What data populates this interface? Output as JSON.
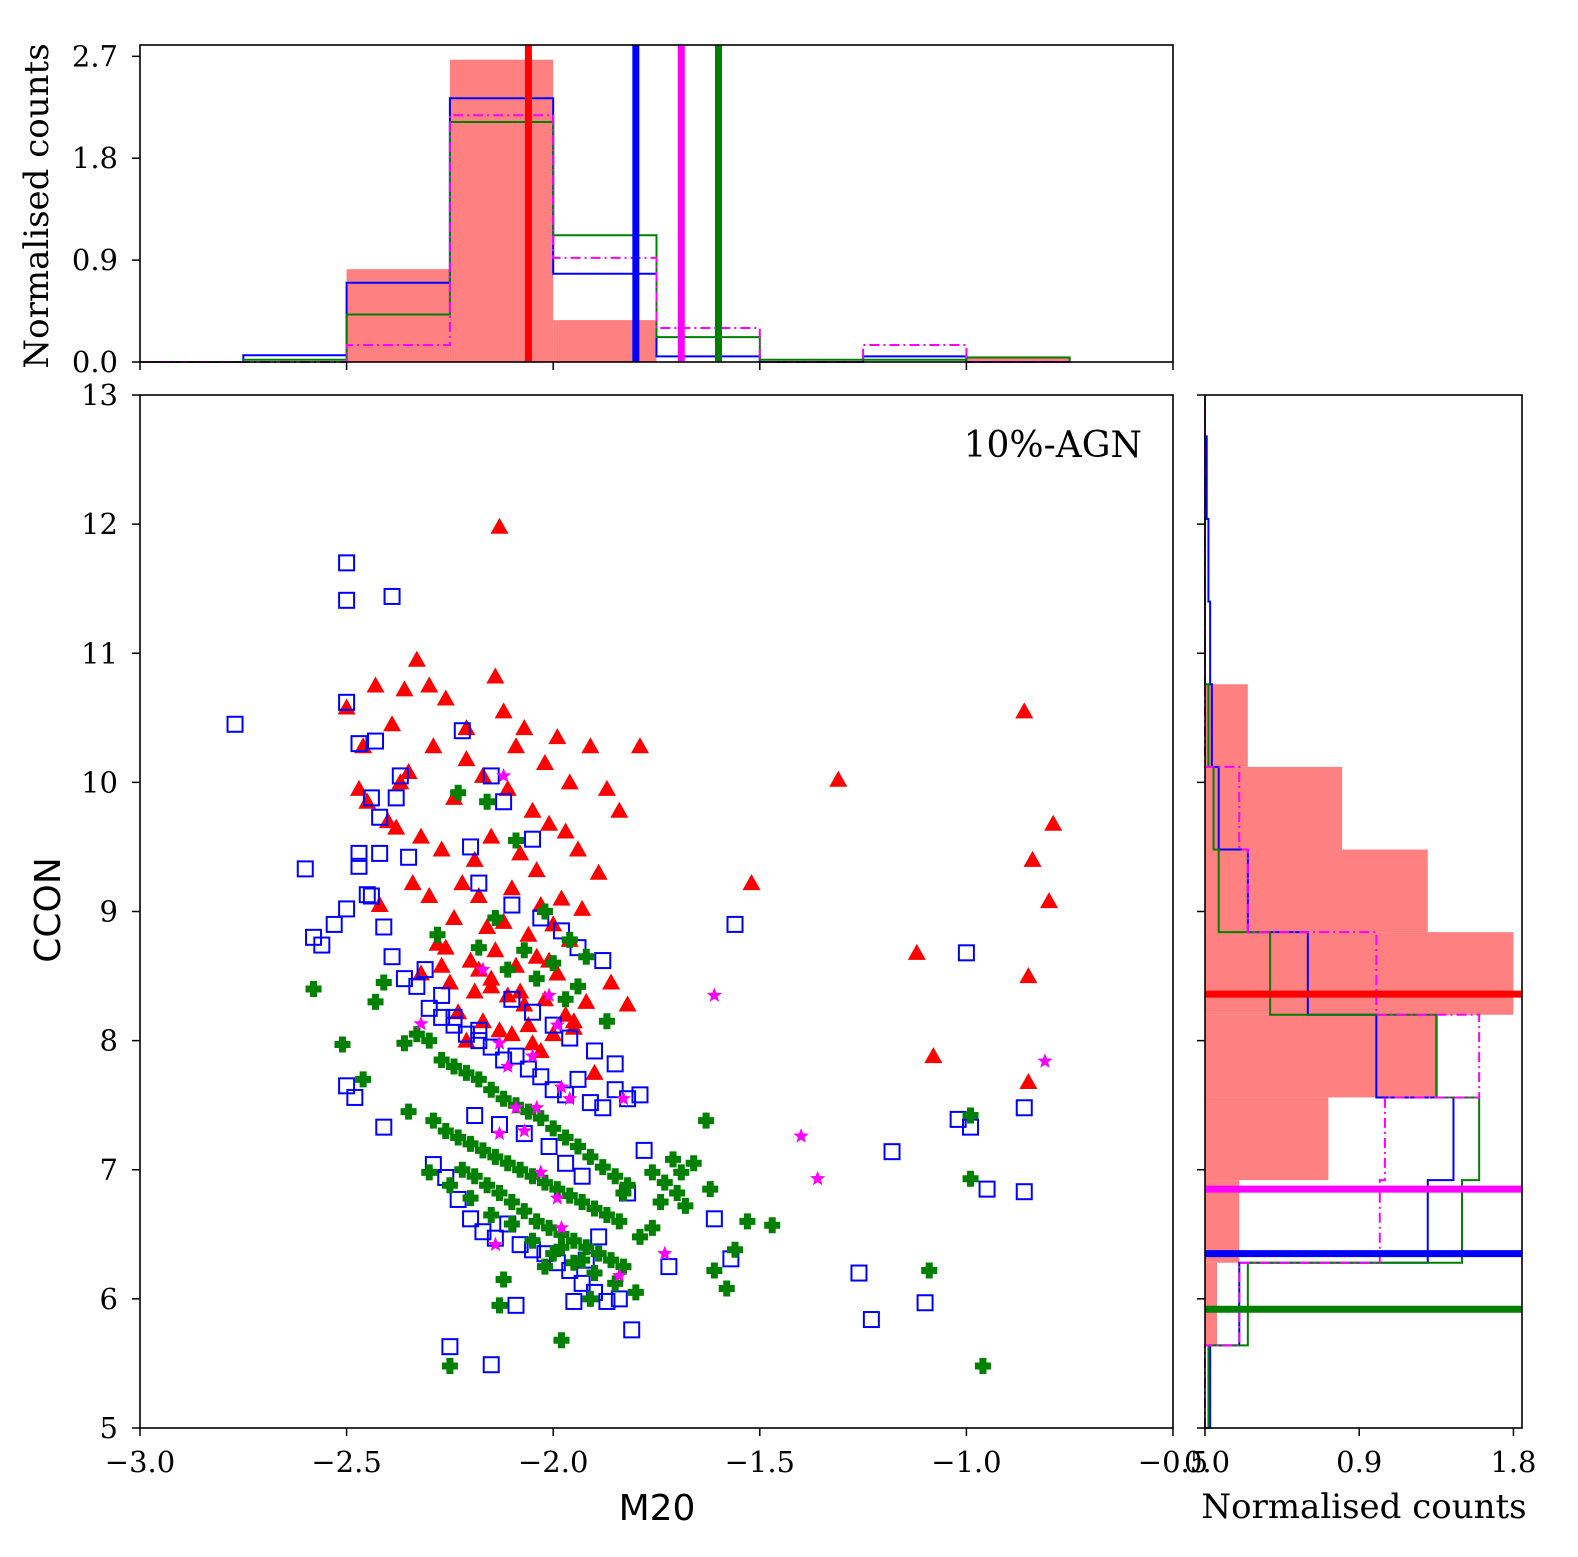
{
  "colors": {
    "red": "#ff0000",
    "red_fill": "#ff8080",
    "blue": "#0000ff",
    "green": "#008000",
    "magenta": "#ff00ff"
  },
  "chart_data": {
    "type": "scatter",
    "annotation": "10%-AGN",
    "xlabel": "M20",
    "ylabel": "CCON",
    "xlim": [
      -3.0,
      -0.5
    ],
    "ylim": [
      5,
      13
    ],
    "xticks": [
      "−3.0",
      "−2.5",
      "−2.0",
      "−1.5",
      "−1.0",
      "−0.5"
    ],
    "xtick_values": [
      -3.0,
      -2.5,
      -2.0,
      -1.5,
      -1.0,
      -0.5
    ],
    "yticks": [
      "5",
      "6",
      "7",
      "8",
      "9",
      "10",
      "11",
      "12",
      "13"
    ],
    "ytick_values": [
      5,
      6,
      7,
      8,
      9,
      10,
      11,
      12,
      13
    ],
    "top_hist": {
      "ylabel": "Normalised counts",
      "ylim": [
        0,
        2.8
      ],
      "yticks": [
        "0.0",
        "0.9",
        "1.8",
        "2.7"
      ],
      "ytick_values": [
        0,
        0.9,
        1.8,
        2.7
      ],
      "bin_edges": [
        -3.0,
        -2.75,
        -2.5,
        -2.25,
        -2.0,
        -1.75,
        -1.5,
        -1.25,
        -1.0,
        -0.75
      ],
      "series": [
        {
          "name": "red",
          "style": "filled",
          "values": [
            0,
            0,
            0.82,
            2.67,
            0.37,
            0,
            0,
            0,
            0.05
          ]
        },
        {
          "name": "blue",
          "style": "step",
          "values": [
            0,
            0.06,
            0.7,
            2.33,
            0.78,
            0.05,
            0,
            0.05,
            0
          ]
        },
        {
          "name": "green",
          "style": "step",
          "values": [
            0,
            0.02,
            0.42,
            2.12,
            1.12,
            0.22,
            0.02,
            0.02,
            0.04
          ]
        },
        {
          "name": "magenta",
          "style": "dashdot",
          "values": [
            0,
            0,
            0.15,
            2.18,
            0.92,
            0.3,
            0,
            0.15,
            0
          ]
        }
      ],
      "medians": [
        {
          "name": "red",
          "value": -2.06
        },
        {
          "name": "blue",
          "value": -1.8
        },
        {
          "name": "magenta",
          "value": -1.69
        },
        {
          "name": "green",
          "value": -1.6
        }
      ]
    },
    "right_hist": {
      "xlabel": "Normalised counts",
      "xlim": [
        0,
        1.85
      ],
      "xticks": [
        "0.0",
        "0.9",
        "1.8"
      ],
      "xtick_values": [
        0,
        0.9,
        1.8
      ],
      "bin_edges": [
        5.0,
        5.64,
        6.28,
        6.92,
        7.56,
        8.2,
        8.84,
        9.48,
        10.12,
        10.76,
        11.4,
        12.04,
        12.68,
        13.0
      ],
      "series": [
        {
          "name": "red",
          "style": "filled",
          "values": [
            0,
            0.07,
            0.2,
            0.72,
            1.36,
            1.8,
            1.3,
            0.8,
            0.25,
            0,
            0,
            0,
            0
          ]
        },
        {
          "name": "blue",
          "style": "step",
          "values": [
            0.03,
            0.2,
            1.3,
            1.45,
            1.0,
            0.6,
            0.25,
            0.08,
            0.04,
            0.03,
            0.02,
            0.01,
            0
          ]
        },
        {
          "name": "green",
          "style": "step",
          "values": [
            0.02,
            0.25,
            1.5,
            1.6,
            1.35,
            0.38,
            0.08,
            0.05,
            0.02,
            0,
            0,
            0,
            0
          ]
        },
        {
          "name": "magenta",
          "style": "dashdot",
          "values": [
            0,
            0.2,
            1.02,
            1.05,
            1.6,
            1.0,
            0.25,
            0.2,
            0,
            0,
            0,
            0,
            0
          ]
        }
      ],
      "medians": [
        {
          "name": "red",
          "value": 8.36
        },
        {
          "name": "magenta",
          "value": 6.85
        },
        {
          "name": "blue",
          "value": 6.35
        },
        {
          "name": "green",
          "value": 5.92
        }
      ]
    },
    "series": [
      {
        "name": "red",
        "marker": "triangle",
        "x": [
          -2.13,
          -2.5,
          -2.46,
          -2.43,
          -2.36,
          -2.39,
          -2.33,
          -2.3,
          -2.26,
          -2.37,
          -2.21,
          -2.14,
          -2.12,
          -2.07,
          -2.09,
          -1.99,
          -2.02,
          -1.91,
          -1.96,
          -1.87,
          -1.84,
          -1.79,
          -2.29,
          -2.35,
          -2.21,
          -2.17,
          -2.24,
          -2.11,
          -2.05,
          -2.01,
          -1.97,
          -2.45,
          -2.4,
          -2.32,
          -2.27,
          -2.19,
          -2.15,
          -2.08,
          -2.04,
          -1.94,
          -1.89,
          -2.22,
          -2.18,
          -2.1,
          -2.03,
          -1.98,
          -1.93,
          -2.3,
          -2.24,
          -2.16,
          -2.12,
          -2.06,
          -2.0,
          -1.96,
          -2.28,
          -2.2,
          -2.14,
          -2.09,
          -2.04,
          -1.99,
          -2.32,
          -2.25,
          -2.19,
          -2.15,
          -2.11,
          -2.07,
          -2.02,
          -1.97,
          -2.23,
          -2.17,
          -2.13,
          -2.06,
          -2.0,
          -1.95,
          -2.27,
          -2.21,
          -2.15,
          -2.1,
          -2.05,
          -1.92,
          -2.01,
          -1.86,
          -1.82,
          -1.31,
          -1.52,
          -1.12,
          -1.08,
          -0.86,
          -0.79,
          -0.84,
          -0.8,
          -0.85,
          -0.85,
          -2.47,
          -2.38,
          -2.34,
          -2.42,
          -2.26,
          -2.18,
          -2.08,
          -1.95,
          -2.03,
          -1.9
        ],
        "y": [
          11.98,
          10.58,
          10.28,
          10.75,
          10.72,
          10.45,
          10.95,
          10.75,
          10.65,
          10.0,
          10.42,
          10.82,
          10.55,
          10.42,
          10.28,
          10.35,
          10.15,
          10.28,
          10.0,
          9.95,
          9.78,
          10.28,
          10.28,
          10.08,
          10.18,
          10.05,
          9.88,
          9.95,
          9.78,
          9.68,
          9.62,
          9.85,
          9.7,
          9.58,
          9.48,
          9.4,
          9.58,
          9.45,
          9.32,
          9.48,
          9.3,
          9.22,
          9.12,
          9.18,
          9.05,
          9.1,
          9.02,
          9.12,
          8.95,
          8.88,
          8.92,
          8.82,
          8.9,
          8.78,
          8.75,
          8.62,
          8.7,
          8.58,
          8.65,
          8.52,
          8.52,
          8.45,
          8.38,
          8.42,
          8.35,
          8.28,
          8.32,
          8.2,
          8.22,
          8.15,
          8.08,
          8.12,
          8.05,
          8.1,
          8.58,
          8.0,
          8.48,
          8.05,
          7.98,
          8.3,
          8.62,
          8.45,
          8.28,
          10.02,
          9.22,
          8.68,
          7.88,
          10.55,
          9.68,
          9.4,
          9.08,
          8.5,
          7.68,
          9.95,
          9.65,
          9.22,
          9.05,
          8.72,
          8.55,
          8.38,
          8.15,
          7.92,
          7.75
        ]
      },
      {
        "name": "blue",
        "marker": "square",
        "x": [
          -2.77,
          -2.5,
          -2.5,
          -2.39,
          -2.5,
          -2.43,
          -2.47,
          -2.44,
          -2.42,
          -2.37,
          -2.42,
          -2.47,
          -2.45,
          -2.38,
          -2.35,
          -2.6,
          -2.58,
          -2.56,
          -2.53,
          -2.5,
          -2.47,
          -2.44,
          -2.41,
          -2.39,
          -2.36,
          -2.33,
          -2.3,
          -2.27,
          -2.24,
          -2.21,
          -2.18,
          -2.15,
          -2.12,
          -2.09,
          -2.06,
          -2.03,
          -2.0,
          -1.97,
          -1.94,
          -1.91,
          -1.88,
          -1.85,
          -1.82,
          -1.79,
          -1.56,
          -1.0,
          -2.5,
          -2.48,
          -2.41,
          -2.29,
          -2.26,
          -2.23,
          -2.2,
          -2.17,
          -2.14,
          -2.11,
          -2.08,
          -2.05,
          -2.02,
          -1.99,
          -1.96,
          -1.93,
          -1.9,
          -1.87,
          -1.84,
          -1.81,
          -2.25,
          -2.15,
          -2.09,
          -1.95,
          -1.92,
          -1.89,
          -1.82,
          -1.78,
          -1.72,
          -1.61,
          -1.57,
          -1.26,
          -1.23,
          -1.18,
          -1.1,
          -1.02,
          -0.99,
          -0.95,
          -0.86,
          -0.86,
          -2.22,
          -2.15,
          -2.12,
          -2.05,
          -2.2,
          -2.18,
          -2.1,
          -2.03,
          -1.98,
          -1.94,
          -1.88,
          -2.31,
          -2.27,
          -2.24,
          -2.18,
          -2.1,
          -2.05,
          -2.0,
          -1.96,
          -1.9,
          -1.85,
          -2.19,
          -2.13,
          -2.07,
          -2.01,
          -1.97,
          -1.93
        ],
        "y": [
          10.45,
          11.7,
          11.41,
          11.44,
          10.62,
          10.32,
          10.3,
          9.88,
          9.73,
          10.05,
          9.45,
          9.45,
          9.13,
          9.88,
          9.42,
          9.33,
          8.8,
          8.74,
          8.9,
          9.02,
          9.35,
          9.12,
          8.88,
          8.65,
          8.48,
          8.42,
          8.25,
          8.18,
          8.12,
          8.05,
          8.0,
          7.95,
          7.85,
          7.88,
          7.78,
          7.72,
          7.62,
          7.58,
          7.7,
          7.52,
          7.48,
          7.62,
          7.55,
          7.58,
          8.9,
          8.68,
          7.65,
          7.56,
          7.33,
          7.04,
          6.94,
          6.77,
          6.62,
          6.52,
          6.47,
          6.58,
          6.42,
          6.38,
          6.35,
          6.28,
          6.22,
          6.12,
          6.05,
          5.98,
          6.0,
          5.76,
          5.63,
          5.49,
          5.95,
          5.98,
          6.3,
          6.48,
          6.82,
          7.15,
          6.25,
          6.62,
          6.31,
          6.2,
          5.84,
          7.14,
          5.97,
          7.39,
          7.33,
          6.85,
          7.48,
          6.83,
          10.4,
          10.05,
          9.85,
          9.56,
          9.5,
          9.22,
          9.05,
          8.95,
          8.85,
          8.72,
          8.62,
          8.55,
          8.35,
          8.18,
          8.08,
          8.32,
          8.22,
          8.12,
          8.02,
          7.92,
          7.82,
          7.42,
          7.35,
          7.28,
          7.18,
          7.05,
          6.95
        ]
      },
      {
        "name": "green",
        "marker": "plus",
        "x": [
          -2.58,
          -2.51,
          -2.46,
          -2.43,
          -2.41,
          -2.36,
          -2.33,
          -2.3,
          -2.27,
          -2.24,
          -2.21,
          -2.18,
          -2.15,
          -2.12,
          -2.09,
          -2.06,
          -2.03,
          -2.0,
          -1.97,
          -1.94,
          -1.91,
          -1.88,
          -1.85,
          -1.82,
          -2.35,
          -2.29,
          -2.26,
          -2.23,
          -2.2,
          -2.17,
          -2.14,
          -2.11,
          -2.08,
          -2.05,
          -2.02,
          -1.99,
          -1.96,
          -1.93,
          -1.9,
          -1.87,
          -1.84,
          -2.22,
          -2.19,
          -2.16,
          -2.13,
          -2.1,
          -2.07,
          -2.04,
          -2.01,
          -1.98,
          -1.95,
          -1.92,
          -1.89,
          -1.86,
          -1.83,
          -2.3,
          -2.25,
          -2.2,
          -2.15,
          -2.1,
          -2.05,
          -2.0,
          -1.95,
          -1.9,
          -1.85,
          -1.8,
          -1.76,
          -1.73,
          -1.7,
          -1.68,
          -1.66,
          -1.63,
          -1.61,
          -1.58,
          -1.56,
          -1.53,
          -1.47,
          -1.62,
          -1.69,
          -1.71,
          -1.74,
          -1.76,
          -1.79,
          -2.25,
          -2.13,
          -1.98,
          -1.91,
          -1.09,
          -0.99,
          -0.99,
          -0.96,
          -2.18,
          -2.11,
          -2.04,
          -1.97,
          -1.87,
          -2.23,
          -2.16,
          -2.09,
          -2.02,
          -1.96,
          -1.92,
          -2.28,
          -2.14,
          -2.07,
          -2.0,
          -1.94,
          -2.02,
          -1.93,
          -1.83,
          -2.12,
          -1.98
        ],
        "y": [
          8.4,
          7.97,
          7.7,
          8.3,
          8.45,
          7.98,
          8.05,
          8.0,
          7.85,
          7.8,
          7.75,
          7.7,
          7.62,
          7.55,
          7.5,
          7.45,
          7.4,
          7.32,
          7.25,
          7.18,
          7.1,
          7.02,
          6.95,
          6.88,
          7.45,
          7.38,
          7.3,
          7.25,
          7.2,
          7.15,
          7.1,
          7.05,
          7.0,
          6.95,
          6.9,
          6.85,
          6.8,
          6.75,
          6.7,
          6.65,
          6.6,
          7.0,
          6.95,
          6.88,
          6.82,
          6.75,
          6.68,
          6.6,
          6.55,
          6.5,
          6.45,
          6.4,
          6.35,
          6.3,
          6.25,
          6.98,
          6.88,
          6.78,
          6.65,
          6.58,
          6.45,
          6.35,
          6.28,
          6.2,
          6.12,
          6.05,
          6.98,
          6.9,
          6.82,
          6.72,
          7.05,
          7.38,
          6.22,
          6.08,
          6.38,
          6.6,
          6.57,
          6.85,
          6.98,
          7.08,
          6.75,
          6.55,
          6.48,
          5.48,
          5.95,
          5.68,
          6.0,
          6.22,
          6.93,
          7.42,
          5.48,
          8.72,
          8.55,
          8.48,
          8.32,
          8.15,
          9.92,
          9.85,
          9.55,
          9.0,
          8.78,
          8.65,
          8.82,
          8.95,
          8.7,
          8.6,
          8.42,
          6.25,
          6.3,
          6.82,
          6.15,
          6.4
        ]
      },
      {
        "name": "magenta",
        "marker": "star",
        "x": [
          -2.12,
          -2.17,
          -2.01,
          -2.32,
          -2.13,
          -1.99,
          -2.05,
          -2.11,
          -2.09,
          -2.04,
          -1.96,
          -1.98,
          -2.07,
          -2.03,
          -1.83,
          -2.13,
          -1.99,
          -1.98,
          -2.14,
          -1.84,
          -1.73,
          -1.61,
          -1.4,
          -1.36,
          -0.81
        ],
        "y": [
          10.05,
          8.55,
          8.35,
          8.13,
          7.98,
          8.12,
          7.88,
          7.8,
          7.48,
          7.48,
          7.55,
          7.64,
          7.3,
          6.98,
          7.55,
          7.28,
          6.78,
          6.55,
          6.42,
          6.18,
          6.35,
          8.35,
          7.26,
          6.93,
          7.84
        ]
      }
    ]
  }
}
